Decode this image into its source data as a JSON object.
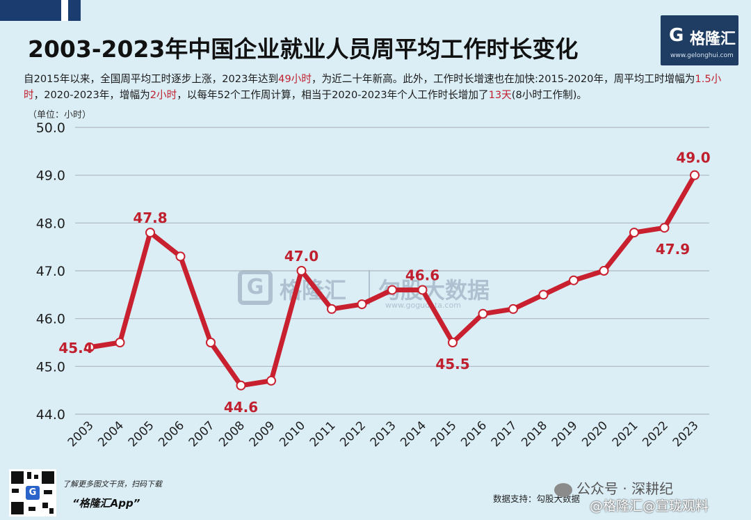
{
  "header": {
    "title": "2003-2023年中国企业就业人员周平均工作时长变化",
    "summary_parts": [
      {
        "text": "自2015年以来，全国周平均工时逐步上涨，2023年达到",
        "highlight": false
      },
      {
        "text": "49小时",
        "highlight": true
      },
      {
        "text": "，为近二十年新高。此外，工作时长增速也在加快:2015-2020年，周平均工时增幅为",
        "highlight": false
      },
      {
        "text": "1.5小时",
        "highlight": true
      },
      {
        "text": "，2020-2023年，增幅为",
        "highlight": false
      },
      {
        "text": "2小时",
        "highlight": true
      },
      {
        "text": "，以每年52个工作周计算，相当于2020-2023年个人工作时长增加了",
        "highlight": false
      },
      {
        "text": "13天",
        "highlight": true
      },
      {
        "text": "(8小时工作制)。",
        "highlight": false
      }
    ],
    "unit": "（单位：小时）"
  },
  "logo": {
    "mark": "G",
    "name": "格隆汇",
    "url": "www.gelonghui.com"
  },
  "watermark": {
    "mark": "G",
    "name": "格隆汇",
    "name2": "勾股大数据",
    "url": "www.gogudata.com"
  },
  "footer": {
    "promo": "了解更多图文干货，扫码下载",
    "app_name": "“格隆汇App”",
    "source": "数据支持：勾股大数据",
    "wechat": "公众号 · 深耕纪",
    "weibo": "@格隆汇@宣珑观料"
  },
  "colors": {
    "line": "#c8202e",
    "label": "#c0202e",
    "grid": "#aeb7bf",
    "axis_text": "#1e1e1e",
    "background": "#dbeef6"
  },
  "chart_data": {
    "type": "line",
    "title": "2003-2023年中国企业就业人员周平均工作时长变化",
    "ylabel": "（单位：小时）",
    "xlabel": "",
    "ylim": [
      44.0,
      50.0
    ],
    "y_ticks": [
      "44.0",
      "45.0",
      "46.0",
      "47.0",
      "48.0",
      "49.0",
      "50.0"
    ],
    "grid": true,
    "categories": [
      "2003",
      "2004",
      "2005",
      "2006",
      "2007",
      "2008",
      "2009",
      "2010",
      "2011",
      "2012",
      "2013",
      "2014",
      "2015",
      "2016",
      "2017",
      "2018",
      "2019",
      "2020",
      "2021",
      "2022",
      "2023"
    ],
    "series": [
      {
        "values": [
          45.4,
          45.5,
          47.8,
          47.3,
          45.5,
          44.6,
          44.7,
          47.0,
          46.2,
          46.3,
          46.6,
          46.6,
          45.5,
          46.1,
          46.2,
          46.5,
          46.8,
          47.0,
          47.8,
          47.9,
          49.0
        ]
      }
    ],
    "data_labels": [
      {
        "category": "2003",
        "text": "45.4"
      },
      {
        "category": "2005",
        "text": "47.8"
      },
      {
        "category": "2008",
        "text": "44.6"
      },
      {
        "category": "2010",
        "text": "47.0"
      },
      {
        "category": "2014",
        "text": "46.6"
      },
      {
        "category": "2015",
        "text": "45.5"
      },
      {
        "category": "2022",
        "text": "47.9"
      },
      {
        "category": "2023",
        "text": "49.0"
      }
    ]
  }
}
